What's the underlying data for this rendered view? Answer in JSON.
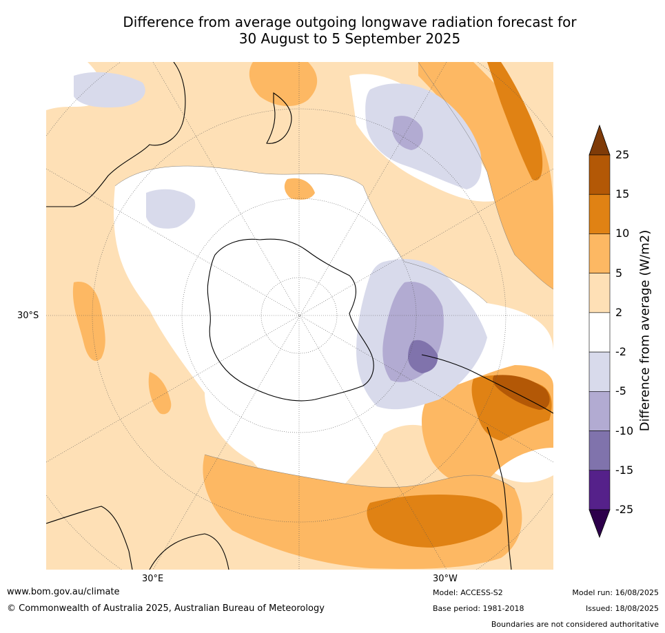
{
  "title_line1": "Difference from average outgoing longwave radiation forecast for",
  "title_line2": "30 August to 5 September 2025",
  "map": {
    "projection": "south-polar stereographic",
    "axis_labels": {
      "lat": "30°S",
      "lon_east": "30°E",
      "lon_west": "30°W"
    }
  },
  "colorbar": {
    "title": "Difference from average (W/m2)",
    "ticks": [
      "25",
      "15",
      "10",
      "5",
      "2",
      "-2",
      "-5",
      "-10",
      "-15",
      "-25"
    ],
    "bins": [
      {
        "from": -25,
        "to": -15,
        "color": "#55218a"
      },
      {
        "from": -15,
        "to": -10,
        "color": "#8073ac"
      },
      {
        "from": -10,
        "to": -5,
        "color": "#b2abd2"
      },
      {
        "from": -5,
        "to": -2,
        "color": "#d8daeb"
      },
      {
        "from": -2,
        "to": 2,
        "color": "#ffffff"
      },
      {
        "from": 2,
        "to": 5,
        "color": "#fee0b6"
      },
      {
        "from": 5,
        "to": 10,
        "color": "#fdb863"
      },
      {
        "from": 10,
        "to": 15,
        "color": "#e08214"
      },
      {
        "from": 15,
        "to": 25,
        "color": "#b35806"
      }
    ],
    "extend_low_color": "#2d004b",
    "extend_high_color": "#7f3b08"
  },
  "footer": {
    "website": "www.bom.gov.au/climate",
    "copyright": "© Commonwealth of Australia 2025, Australian Bureau of Meteorology",
    "model": "Model: ACCESS-S2",
    "base_period": "Base period: 1981-2018",
    "model_run": "Model run: 16/08/2025",
    "issued": "Issued: 18/08/2025",
    "disclaimer": "Boundaries are not considered authoritative"
  }
}
